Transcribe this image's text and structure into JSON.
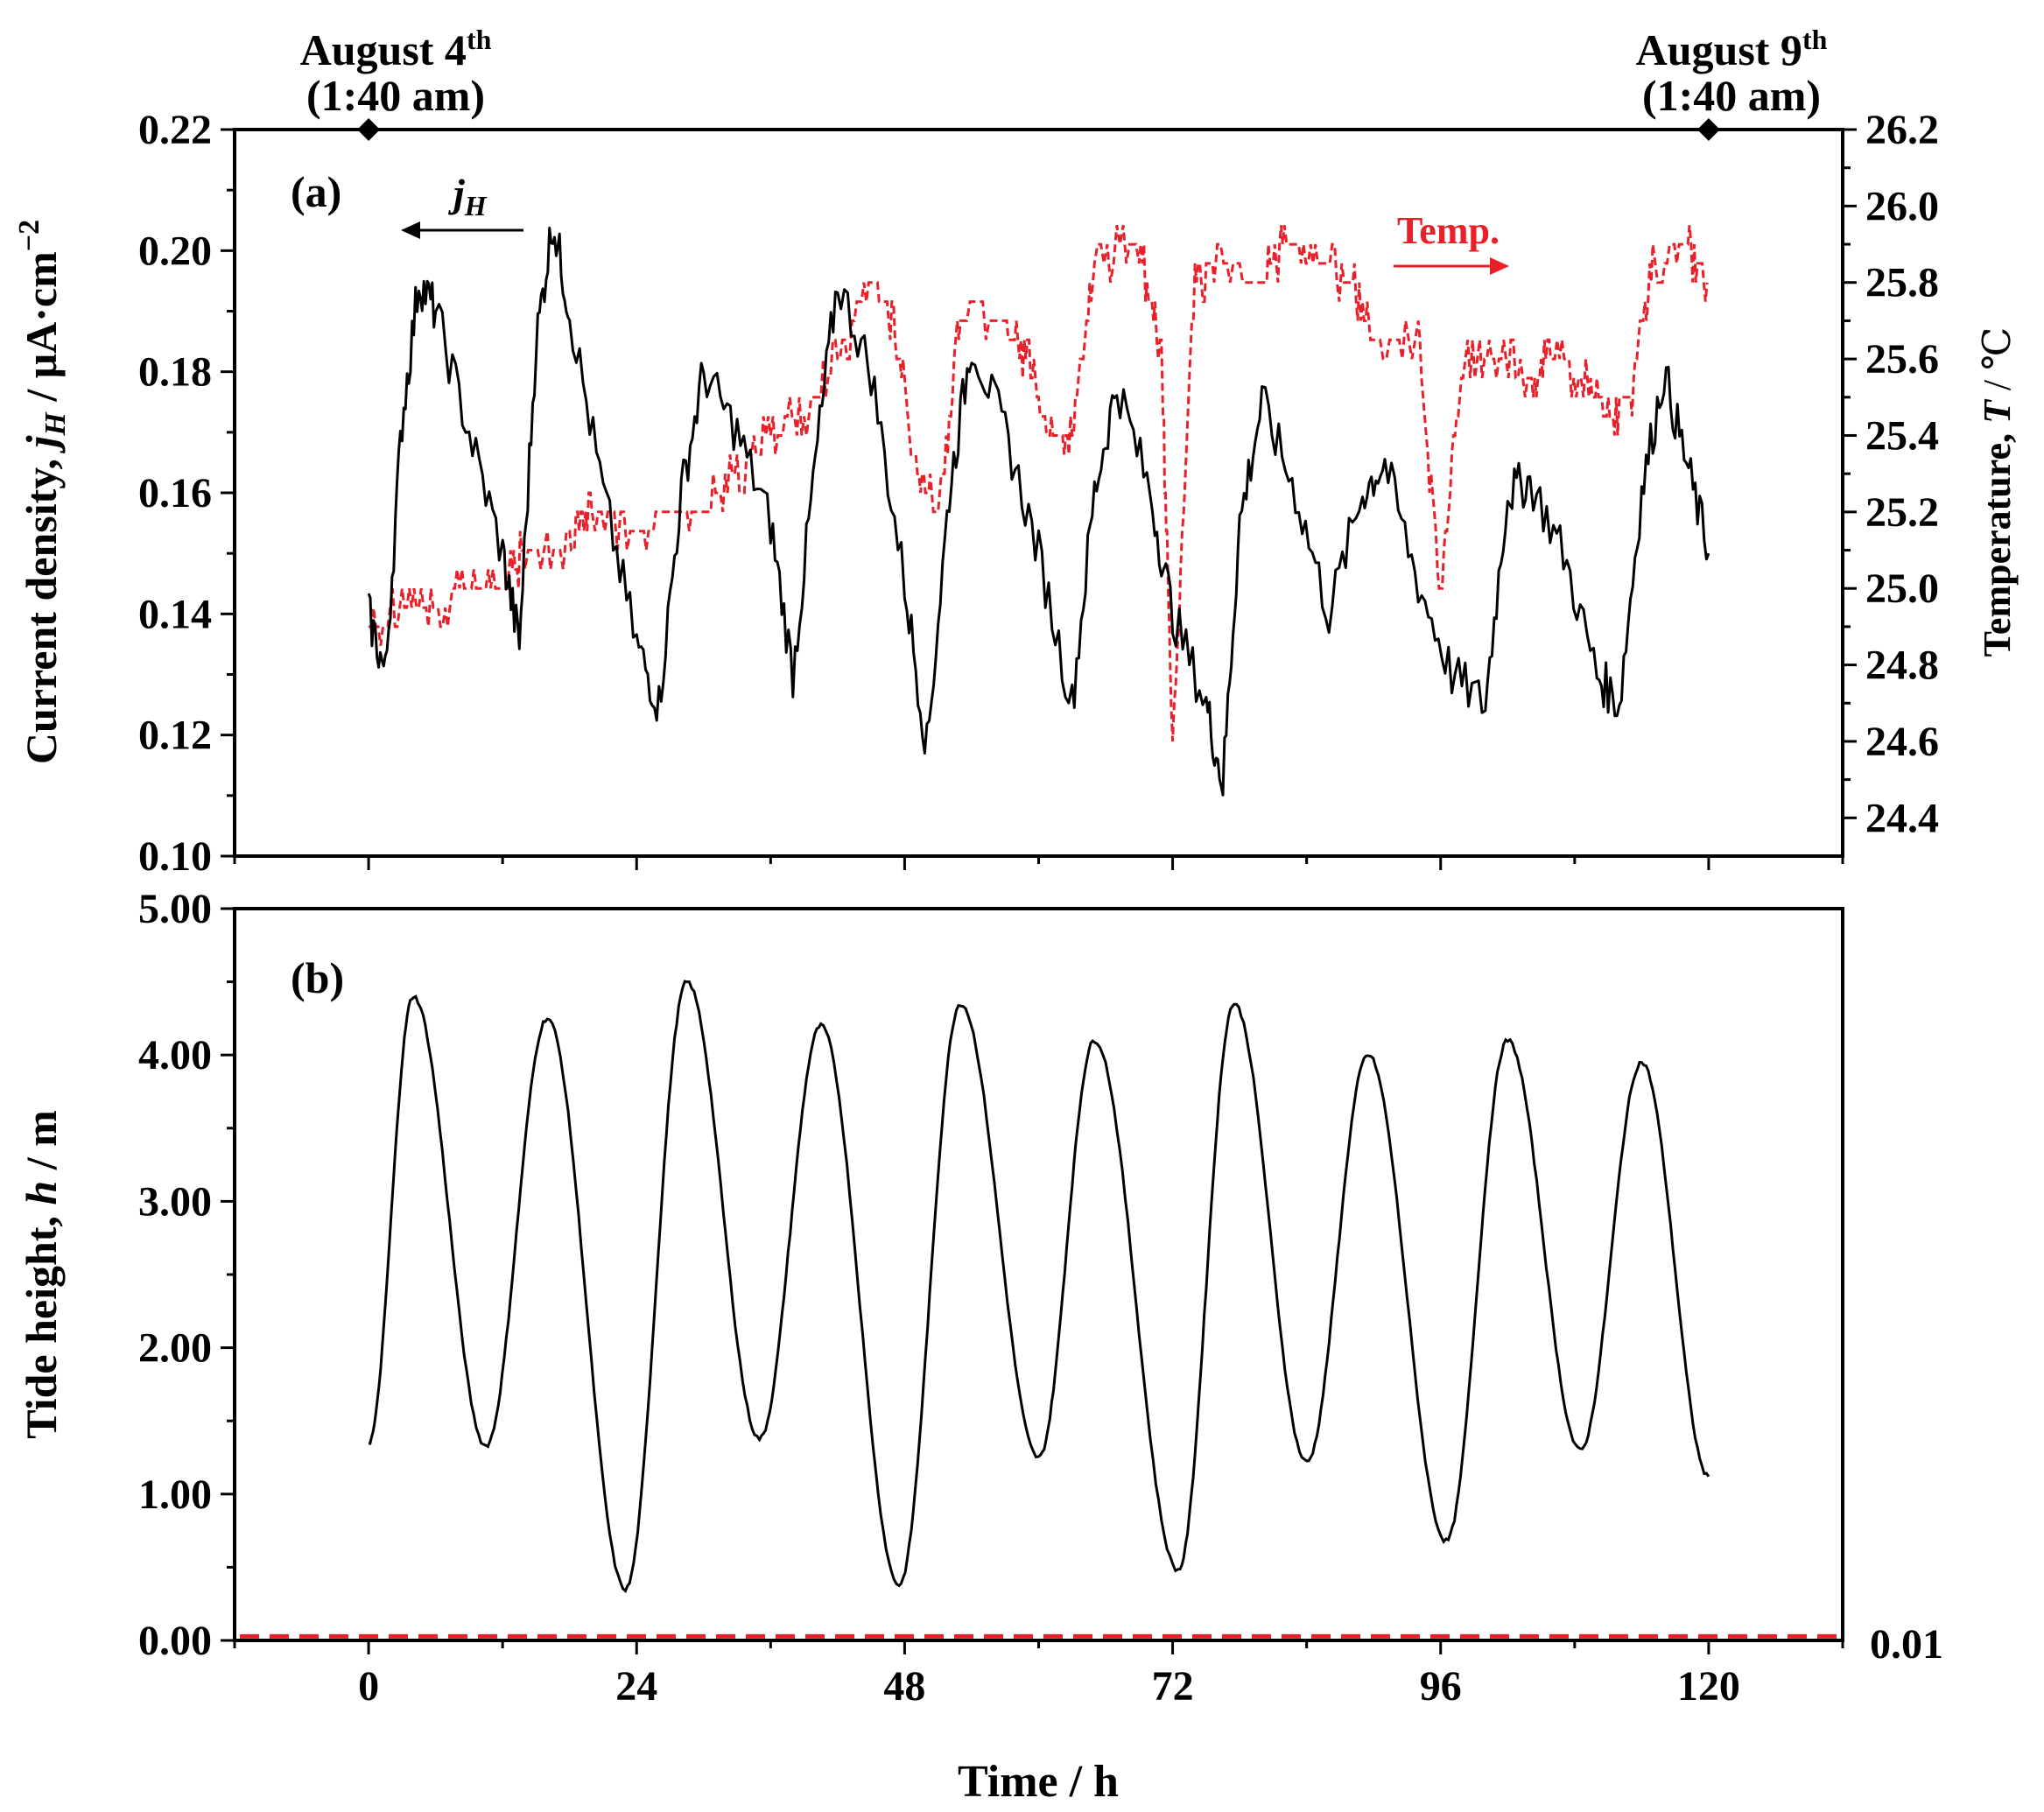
{
  "chart_data": [
    {
      "panel": "(a)",
      "type": "line",
      "xlabel": "Time / h",
      "xlim": [
        -12,
        132
      ],
      "xticks": [
        0,
        24,
        48,
        72,
        96,
        120
      ],
      "ylabel_left": {
        "text": "Current density, ",
        "symbol": "j",
        "sub": "H",
        "unit": " / μA·cm",
        "sup": "−2"
      },
      "ylabel_right": {
        "text": "Temperature, ",
        "symbol": "T",
        "unit": " / ℃"
      },
      "ylim_left": [
        0.1,
        0.22
      ],
      "yticks_left": [
        "0.10",
        "0.12",
        "0.14",
        "0.16",
        "0.18",
        "0.20",
        "0.22"
      ],
      "ylim_right": [
        24.3,
        26.2
      ],
      "yticks_right": [
        "24.4",
        "24.6",
        "24.8",
        "25.0",
        "25.2",
        "25.4",
        "25.6",
        "25.8",
        "26.0",
        "26.2"
      ],
      "date_markers": [
        {
          "x": 0,
          "label": "August 4",
          "sup": "th",
          "time": "(1:40 am)"
        },
        {
          "x": 120,
          "label": "August 9",
          "sup": "th",
          "time": "(1:40 am)"
        }
      ],
      "annotations": {
        "jh_symbol": "j",
        "jh_sub": "H",
        "temp_label": "Temp."
      },
      "series": [
        {
          "name": "jH",
          "axis": "left",
          "color": "#000000",
          "style": "solid",
          "points": [
            [
              0,
              0.14
            ],
            [
              1.5,
              0.13
            ],
            [
              3,
              0.172
            ],
            [
              4.5,
              0.195
            ],
            [
              6,
              0.19
            ],
            [
              9,
              0.17
            ],
            [
              12,
              0.15
            ],
            [
              13.5,
              0.135
            ],
            [
              15,
              0.185
            ],
            [
              16.5,
              0.205
            ],
            [
              18,
              0.19
            ],
            [
              21,
              0.16
            ],
            [
              24,
              0.135
            ],
            [
              26,
              0.125
            ],
            [
              28,
              0.16
            ],
            [
              30,
              0.18
            ],
            [
              33,
              0.17
            ],
            [
              36,
              0.155
            ],
            [
              38,
              0.13
            ],
            [
              40,
              0.165
            ],
            [
              42,
              0.195
            ],
            [
              45,
              0.18
            ],
            [
              48,
              0.145
            ],
            [
              50,
              0.118
            ],
            [
              52,
              0.16
            ],
            [
              54,
              0.185
            ],
            [
              57,
              0.17
            ],
            [
              60,
              0.15
            ],
            [
              63,
              0.125
            ],
            [
              65,
              0.16
            ],
            [
              67,
              0.178
            ],
            [
              70,
              0.16
            ],
            [
              72,
              0.14
            ],
            [
              75,
              0.125
            ],
            [
              76.5,
              0.112
            ],
            [
              78,
              0.155
            ],
            [
              80,
              0.175
            ],
            [
              83,
              0.16
            ],
            [
              86,
              0.14
            ],
            [
              89,
              0.16
            ],
            [
              91,
              0.165
            ],
            [
              94,
              0.145
            ],
            [
              97,
              0.13
            ],
            [
              100,
              0.125
            ],
            [
              102,
              0.16
            ],
            [
              104,
              0.162
            ],
            [
              107,
              0.15
            ],
            [
              110,
              0.13
            ],
            [
              112,
              0.125
            ],
            [
              114,
              0.16
            ],
            [
              116,
              0.18
            ],
            [
              118,
              0.165
            ],
            [
              120,
              0.15
            ]
          ]
        },
        {
          "name": "Temp.",
          "axis": "right",
          "color": "#e8202a",
          "style": "dashed",
          "points": [
            [
              0,
              24.9
            ],
            [
              3,
              24.95
            ],
            [
              6,
              24.95
            ],
            [
              9,
              25.0
            ],
            [
              12,
              25.0
            ],
            [
              14,
              25.1
            ],
            [
              18,
              25.1
            ],
            [
              20,
              25.2
            ],
            [
              24,
              25.15
            ],
            [
              27,
              25.2
            ],
            [
              30,
              25.2
            ],
            [
              33,
              25.3
            ],
            [
              36,
              25.4
            ],
            [
              39,
              25.45
            ],
            [
              42,
              25.6
            ],
            [
              45,
              25.8
            ],
            [
              47,
              25.7
            ],
            [
              49,
              25.3
            ],
            [
              51,
              25.2
            ],
            [
              53,
              25.7
            ],
            [
              57,
              25.7
            ],
            [
              59,
              25.6
            ],
            [
              61,
              25.4
            ],
            [
              63,
              25.4
            ],
            [
              65,
              25.85
            ],
            [
              69,
              25.9
            ],
            [
              71,
              25.6
            ],
            [
              72,
              24.6
            ],
            [
              74,
              25.8
            ],
            [
              76,
              25.85
            ],
            [
              80,
              25.8
            ],
            [
              82,
              25.9
            ],
            [
              85,
              25.85
            ],
            [
              88,
              25.8
            ],
            [
              90,
              25.65
            ],
            [
              94,
              25.65
            ],
            [
              96,
              25.0
            ],
            [
              98,
              25.6
            ],
            [
              101,
              25.6
            ],
            [
              104,
              25.55
            ],
            [
              106,
              25.6
            ],
            [
              109,
              25.55
            ],
            [
              111,
              25.45
            ],
            [
              113,
              25.5
            ],
            [
              115,
              25.85
            ],
            [
              118,
              25.9
            ],
            [
              120,
              25.8
            ]
          ]
        }
      ]
    },
    {
      "panel": "(b)",
      "type": "line",
      "xlabel": "Time / h",
      "xlim": [
        -12,
        132
      ],
      "xticks": [
        0,
        24,
        48,
        72,
        96,
        120
      ],
      "ylabel_left": {
        "text": "Tide height, ",
        "symbol": "h",
        "unit": " / m"
      },
      "ylim": [
        0,
        5
      ],
      "yticks": [
        "0.00",
        "1.00",
        "2.00",
        "3.00",
        "4.00",
        "5.00"
      ],
      "right_axis_tick": "0.01",
      "tide_extrema": [
        [
          0,
          1.35
        ],
        [
          4,
          4.4
        ],
        [
          10.5,
          1.33
        ],
        [
          16,
          4.25
        ],
        [
          23,
          0.35
        ],
        [
          28.5,
          4.5
        ],
        [
          35,
          1.38
        ],
        [
          40.5,
          4.2
        ],
        [
          47.5,
          0.38
        ],
        [
          53,
          4.35
        ],
        [
          60,
          1.25
        ],
        [
          65,
          4.1
        ],
        [
          72.5,
          0.48
        ],
        [
          77.5,
          4.35
        ],
        [
          84,
          1.22
        ],
        [
          89.5,
          4.0
        ],
        [
          96.5,
          0.68
        ],
        [
          102,
          4.1
        ],
        [
          108.5,
          1.3
        ],
        [
          114,
          3.95
        ],
        [
          120,
          1.12
        ]
      ],
      "series": [
        {
          "name": "Tide height",
          "color": "#000000",
          "style": "solid"
        },
        {
          "name": "baseline",
          "color": "#e8202a",
          "style": "dashed",
          "value": 0.01
        }
      ]
    }
  ]
}
